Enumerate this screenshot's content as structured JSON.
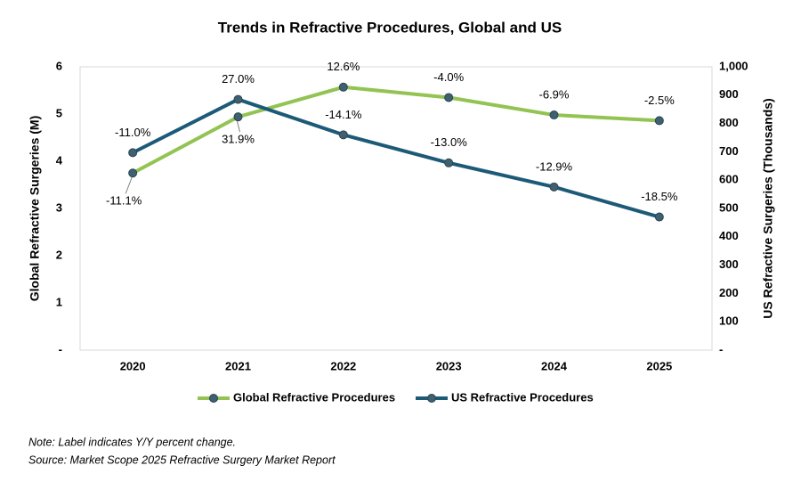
{
  "chart_data": {
    "type": "line",
    "title": "Trends in Refractive Procedures, Global and US",
    "y_label": "Global Refractive Surgeries (M)",
    "y2_label": "US Refractive Surgeries (Thousands)",
    "categories": [
      "2020",
      "2021",
      "2022",
      "2023",
      "2024",
      "2025"
    ],
    "ylim": [
      0,
      6
    ],
    "yticks": [
      {
        "value": 0,
        "label": "-"
      },
      1,
      2,
      3,
      4,
      5,
      6
    ],
    "y2lim": [
      0,
      1000
    ],
    "y2ticks": [
      {
        "value": 0,
        "label": "-"
      },
      100,
      200,
      300,
      400,
      500,
      600,
      700,
      800,
      900,
      {
        "value": 1000,
        "label": "1,000"
      }
    ],
    "series": [
      {
        "name": "Global Refractive Procedures",
        "color": "#92c353",
        "values": [
          3.75,
          4.94,
          5.57,
          5.35,
          4.98,
          4.86
        ],
        "change_labels": [
          "-11.1%",
          "31.9%",
          "12.6%",
          "-4.0%",
          "-6.9%",
          "-2.5%"
        ]
      },
      {
        "name": "US Refractive Procedures",
        "color": "#1d5a78",
        "axis": "y2",
        "values": [
          697,
          885,
          760,
          661,
          576,
          470
        ],
        "change_labels": [
          "-11.0%",
          "27.0%",
          "-14.1%",
          "-13.0%",
          "-12.9%",
          "-18.5%"
        ]
      }
    ],
    "legend": "bottom",
    "marker_color": "#3f6070",
    "notes": [
      "Note: Label indicates Y/Y percent change.",
      "Source: Market Scope 2025 Refractive Surgery Market Report"
    ]
  }
}
